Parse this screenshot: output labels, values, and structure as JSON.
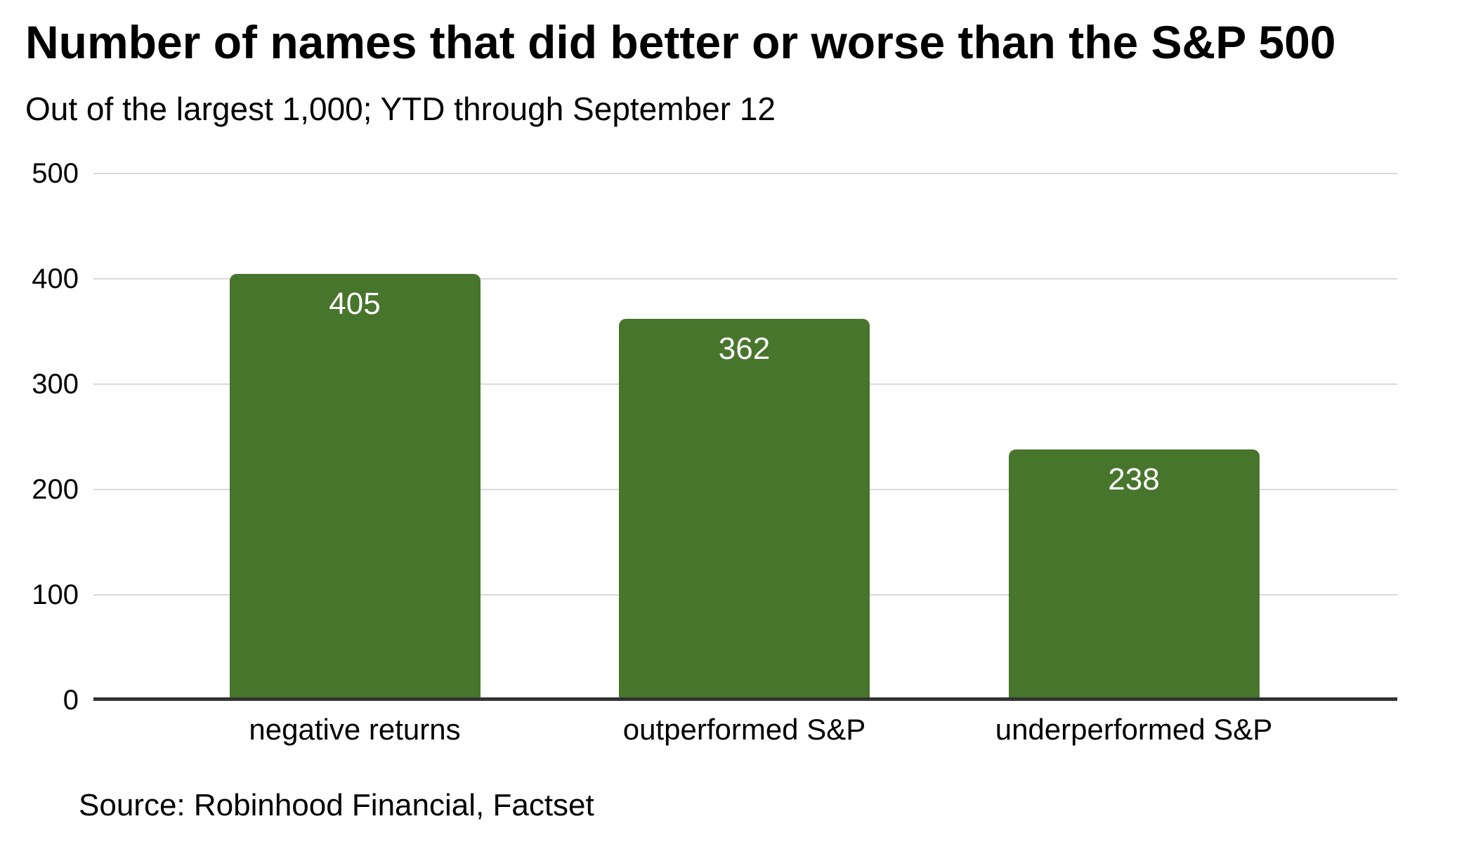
{
  "chart_data": {
    "type": "bar",
    "title": "Number of names that did better or worse than the S&P 500",
    "subtitle": "Out of the largest 1,000; YTD through September 12",
    "categories": [
      "negative returns",
      "outperformed S&P",
      "underperformed S&P"
    ],
    "values": [
      405,
      362,
      238
    ],
    "y_ticks": [
      0,
      100,
      200,
      300,
      400,
      500
    ],
    "ylim": [
      0,
      500
    ],
    "xlabel": "",
    "ylabel": "",
    "grid": true,
    "legend_position": "none",
    "bar_color": "#47752c",
    "value_label_color": "#ffffff",
    "gridline_color": "#d9d9d9",
    "axis_line_color": "#333333",
    "source": "Source: Robinhood Financial, Factset"
  }
}
